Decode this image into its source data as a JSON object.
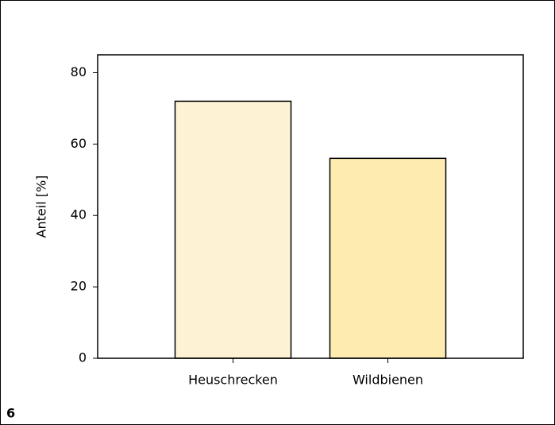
{
  "chart_data": {
    "type": "bar",
    "y_label": "Anteil [%]",
    "categories": [
      "Heuschrecken",
      "Wildbienen"
    ],
    "values": [
      72,
      56
    ],
    "colors": [
      "#fdf3d4",
      "#fdebb0"
    ],
    "ylim": [
      0,
      85
    ],
    "yticks": [
      0,
      20,
      40,
      60,
      80
    ],
    "grid": false
  },
  "figure_label": "6"
}
